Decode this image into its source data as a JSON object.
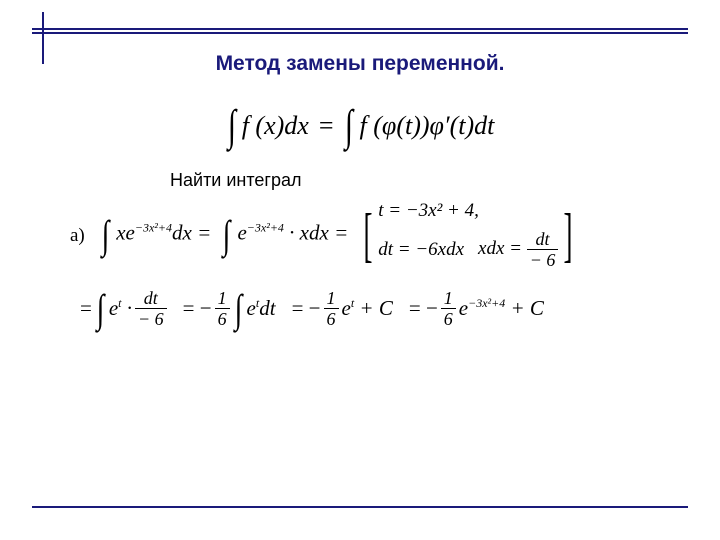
{
  "title": "Метод замены переменной.",
  "title_color": "#1a1a7a",
  "title_fontsize": 21,
  "border_color": "#1a1a7a",
  "main_formula": {
    "lhs_int": "∫",
    "lhs": "f (x)dx",
    "eq": "=",
    "rhs_int": "∫",
    "rhs": "f (φ(t))φ′(t)dt"
  },
  "subtitle": "Найти интеграл",
  "subtitle_fontsize": 18,
  "label_a": "а)",
  "row1": {
    "p1_int": "∫",
    "p1": "xe",
    "p1_exp": "−3x²+4",
    "p1_tail": "dx =",
    "p2_int": "∫",
    "p2": "e",
    "p2_exp": "−3x²+4",
    "p2_tail": " · xdx =",
    "sub_t": "t = −3x² + 4,",
    "sub_dt": "dt = −6xdx",
    "sub_xdx_lhs": "xdx =",
    "sub_xdx_num": "dt",
    "sub_xdx_den": "− 6"
  },
  "row2": {
    "s1_eq": "=",
    "s1_int": "∫",
    "s1_e": "e",
    "s1_exp": "t",
    "s1_dot": " ·",
    "s1_num": "dt",
    "s1_den": "− 6",
    "s2_eq": "= −",
    "s2_num": "1",
    "s2_den": "6",
    "s2_int": "∫",
    "s2_e": "e",
    "s2_exp": "t",
    "s2_tail": "dt",
    "s3_eq": "= −",
    "s3_num": "1",
    "s3_den": "6",
    "s3_e": "e",
    "s3_exp": "t",
    "s3_tail": " + C",
    "s4_eq": "= −",
    "s4_num": "1",
    "s4_den": "6",
    "s4_e": "e",
    "s4_exp": "−3x²+4",
    "s4_tail": " + C"
  }
}
